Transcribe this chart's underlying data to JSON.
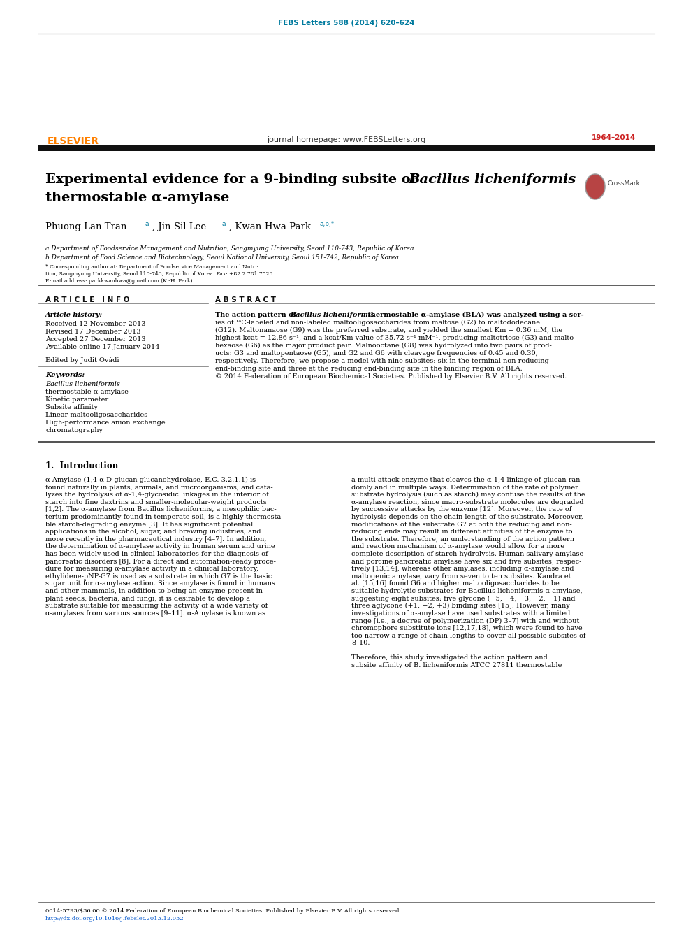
{
  "journal_ref": "FEBS Letters 588 (2014) 620–624",
  "journal_homepage": "journal homepage: www.FEBSLetters.org",
  "elsevier_text": "ELSEVIER",
  "febs_years": "1964–2014",
  "title_normal": "Experimental evidence for a 9-binding subsite of ",
  "title_italic": "Bacillus licheniformis",
  "title_line2": "thermostable α-amylase",
  "author_text": "Phuong Lan Tran",
  "author2": ", Jin-Sil Lee",
  "author3": ", Kwan-Hwa Park",
  "sup_a": "a",
  "sup_ab": "a,b,*",
  "affil_a": "a Department of Foodservice Management and Nutrition, Sangmyung University, Seoul 110-743, Republic of Korea",
  "affil_b": "b Department of Food Science and Biotechnology, Seoul National University, Seoul 151-742, Republic of Korea",
  "section_article_info": "A R T I C L E   I N F O",
  "section_abstract": "A B S T R A C T",
  "article_history_label": "Article history:",
  "received": "Received 12 November 2013",
  "revised": "Revised 17 December 2013",
  "accepted": "Accepted 27 December 2013",
  "available": "Available online 17 January 2014",
  "edited_by": "Edited by Judit Ovádi",
  "keywords_label": "Keywords:",
  "keyword1a": "Bacillus licheniformis",
  "keyword1b": " thermostable α-amylase",
  "keyword2": "Kinetic parameter",
  "keyword3": "Subsite affinity",
  "keyword4": "Linear maltooligosaccharides",
  "keyword5": "High-performance anion exchange",
  "keyword6": "chromatography",
  "footer_left": "0014-5793/$36.00 © 2014 Federation of European Biochemical Societies. Published by Elsevier B.V. All rights reserved.",
  "footer_doi": "http://dx.doi.org/10.1016/j.febslet.2013.12.032",
  "footnote1": "* Corresponding author at: Department of Foodservice Management and Nutri-",
  "footnote2": "tion, Sangmyung University, Seoul 110-743, Republic of Korea. Fax: +82 2 781 7528.",
  "footnote3": "E-mail address: parkkwanhwa@gmail.com (K.-H. Park).",
  "background_color": "#ffffff",
  "journal_ref_color": "#007a9e",
  "elsevier_color": "#ff8000",
  "header_bar_color": "#1a1a1a",
  "intro_heading": "1.  Introduction"
}
